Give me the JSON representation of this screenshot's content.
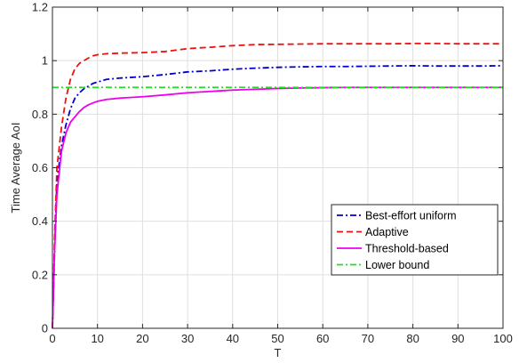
{
  "chart_data": {
    "type": "line",
    "title": "",
    "xlabel": "T",
    "ylabel": "Time Average AoI",
    "xlim": [
      0,
      100
    ],
    "ylim": [
      0,
      1.2
    ],
    "xticks": [
      0,
      10,
      20,
      30,
      40,
      50,
      60,
      70,
      80,
      90,
      100
    ],
    "yticks": [
      0,
      0.2,
      0.4,
      0.6,
      0.8,
      1,
      1.2
    ],
    "xtick_labels": [
      "0",
      "10",
      "20",
      "30",
      "40",
      "50",
      "60",
      "70",
      "80",
      "90",
      "100"
    ],
    "ytick_labels": [
      "0",
      "0.2",
      "0.4",
      "0.6",
      "0.8",
      "1",
      "1.2"
    ],
    "grid": true,
    "legend_position": "lower-right",
    "series": [
      {
        "name": "Best-effort uniform",
        "color": "#0000cc",
        "style": "dash-dot",
        "x": [
          0,
          0.5,
          1,
          2,
          3,
          4,
          5,
          6,
          7,
          8,
          9,
          10,
          12,
          15,
          20,
          25,
          30,
          35,
          40,
          45,
          50,
          55,
          60,
          65,
          70,
          75,
          80,
          85,
          90,
          95,
          100
        ],
        "y": [
          0,
          0.3,
          0.55,
          0.68,
          0.76,
          0.82,
          0.86,
          0.88,
          0.895,
          0.905,
          0.915,
          0.92,
          0.93,
          0.935,
          0.94,
          0.948,
          0.958,
          0.962,
          0.968,
          0.972,
          0.975,
          0.977,
          0.978,
          0.978,
          0.979,
          0.98,
          0.981,
          0.98,
          0.98,
          0.98,
          0.981
        ]
      },
      {
        "name": "Adaptive",
        "color": "#ee1111",
        "style": "dashed",
        "x": [
          0,
          0.5,
          1,
          2,
          3,
          4,
          5,
          6,
          7,
          8,
          9,
          10,
          12,
          15,
          20,
          25,
          30,
          35,
          40,
          45,
          50,
          55,
          60,
          65,
          70,
          75,
          80,
          85,
          90,
          95,
          100
        ],
        "y": [
          0,
          0.35,
          0.6,
          0.75,
          0.86,
          0.93,
          0.97,
          0.99,
          1.0,
          1.01,
          1.018,
          1.022,
          1.026,
          1.028,
          1.03,
          1.034,
          1.045,
          1.05,
          1.056,
          1.06,
          1.061,
          1.062,
          1.063,
          1.063,
          1.063,
          1.063,
          1.064,
          1.064,
          1.063,
          1.063,
          1.063
        ]
      },
      {
        "name": "Threshold-based",
        "color": "#ee00ee",
        "style": "solid",
        "x": [
          0,
          0.5,
          1,
          2,
          3,
          4,
          5,
          6,
          7,
          8,
          9,
          10,
          12,
          15,
          20,
          25,
          30,
          35,
          40,
          45,
          50,
          55,
          60,
          65,
          70,
          75,
          80,
          85,
          90,
          95,
          100
        ],
        "y": [
          0,
          0.3,
          0.5,
          0.66,
          0.73,
          0.77,
          0.79,
          0.81,
          0.825,
          0.835,
          0.842,
          0.848,
          0.855,
          0.86,
          0.865,
          0.872,
          0.88,
          0.885,
          0.89,
          0.893,
          0.896,
          0.898,
          0.899,
          0.9,
          0.9,
          0.9,
          0.9,
          0.9,
          0.9,
          0.9,
          0.9
        ]
      },
      {
        "name": "Lower bound",
        "color": "#22dd22",
        "style": "dash-dot",
        "x": [
          0,
          100
        ],
        "y": [
          0.9,
          0.9
        ]
      }
    ]
  }
}
